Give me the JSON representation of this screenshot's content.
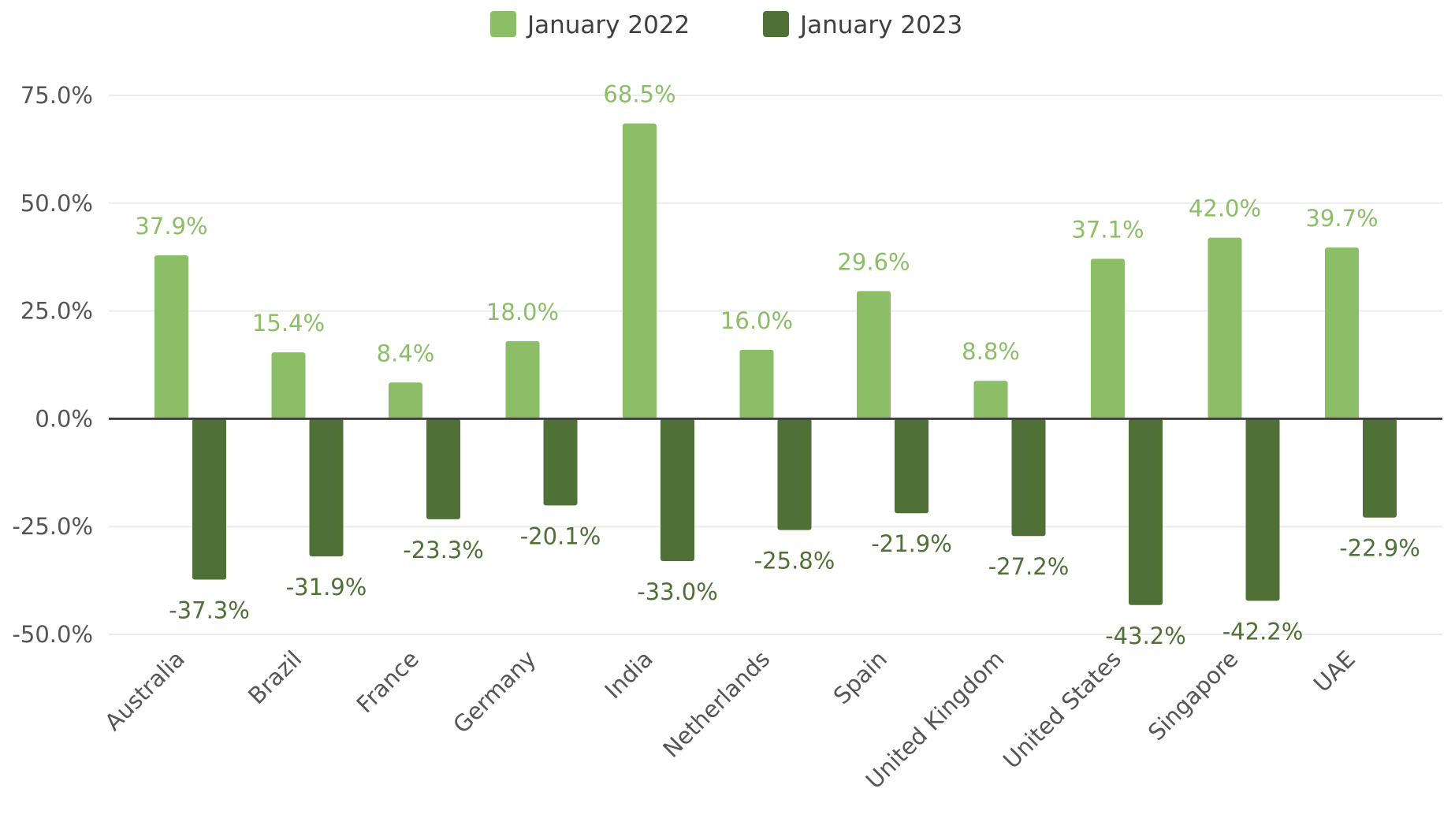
{
  "chart_data": {
    "type": "bar",
    "title": "",
    "xlabel": "",
    "ylabel": "",
    "categories": [
      "Australia",
      "Brazil",
      "France",
      "Germany",
      "India",
      "Netherlands",
      "Spain",
      "United Kingdom",
      "United States",
      "Singapore",
      "UAE"
    ],
    "series": [
      {
        "name": "January 2022",
        "color": "#8cbe68",
        "values": [
          37.9,
          15.4,
          8.4,
          18.0,
          68.5,
          16.0,
          29.6,
          8.8,
          37.1,
          42.0,
          39.7
        ],
        "labels": [
          "37.9%",
          "15.4%",
          "8.4%",
          "18.0%",
          "68.5%",
          "16.0%",
          "29.6%",
          "8.8%",
          "37.1%",
          "42.0%",
          "39.7%"
        ]
      },
      {
        "name": "January 2023",
        "color": "#4f7137",
        "values": [
          -37.3,
          -31.9,
          -23.3,
          -20.1,
          -33.0,
          -25.8,
          -21.9,
          -27.2,
          -43.2,
          -42.2,
          -22.9
        ],
        "labels": [
          "-37.3%",
          "-31.9%",
          "-23.3%",
          "-20.1%",
          "-33.0%",
          "-25.8%",
          "-21.9%",
          "-27.2%",
          "-43.2%",
          "-42.2%",
          "-22.9%"
        ]
      }
    ],
    "ylim": [
      -50,
      75
    ],
    "yticks": [
      75,
      50,
      25,
      0,
      -25,
      -50
    ],
    "ytick_labels": [
      "75.0%",
      "50.0%",
      "25.0%",
      "0.0%",
      "-25.0%",
      "-50.0%"
    ],
    "grid": true,
    "legend_position": "top-center",
    "zero_line_color": "#404040",
    "grid_color": "#ececec"
  }
}
